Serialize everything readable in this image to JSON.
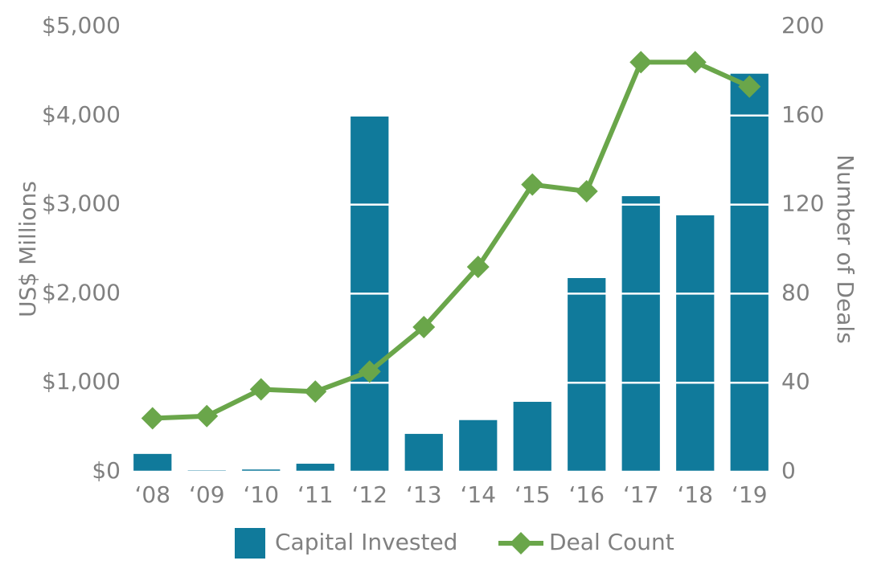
{
  "chart_data": {
    "type": "bar",
    "categories": [
      "‘08",
      "‘09",
      "‘10",
      "‘11",
      "‘12",
      "‘13",
      "‘14",
      "‘15",
      "‘16",
      "‘17",
      "‘18",
      "‘19"
    ],
    "series": [
      {
        "name": "Capital Invested",
        "type": "bar",
        "color": "#107a9b",
        "values": [
          200,
          15,
          25,
          90,
          4000,
          425,
          580,
          785,
          2175,
          3095,
          2880,
          4470
        ]
      },
      {
        "name": "Deal Count",
        "type": "line",
        "axis": "y2",
        "color": "#6aa64a",
        "values": [
          24,
          25,
          37,
          36,
          45,
          65,
          92,
          129,
          126,
          184,
          184,
          173
        ]
      }
    ],
    "ylabel": "US$ Millions",
    "y2label": "Number of Deals",
    "ylim": [
      0,
      5000
    ],
    "yticks": [
      {
        "value": 0,
        "label": "$0"
      },
      {
        "value": 1000,
        "label": "$1,000"
      },
      {
        "value": 2000,
        "label": "$2,000"
      },
      {
        "value": 3000,
        "label": "$3,000"
      },
      {
        "value": 4000,
        "label": "$4,000"
      },
      {
        "value": 5000,
        "label": "$5,000"
      }
    ],
    "y2lim": [
      0,
      200
    ],
    "y2ticks": [
      0,
      40,
      80,
      120,
      160,
      200
    ],
    "grid": true,
    "grid_color": "#ffffff",
    "legend": "bottom"
  }
}
